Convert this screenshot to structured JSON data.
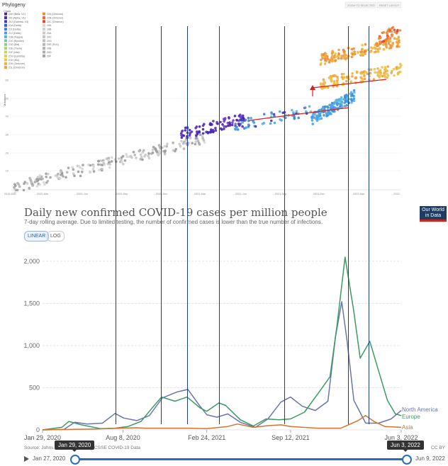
{
  "phylogeny": {
    "title": "Phylogeny",
    "color_by_label": "Clade",
    "buttons": [
      "ZOOM TO SELECTED",
      "RESET LAYOUT"
    ],
    "y_axis_label": "Mutations",
    "y_ticks": [
      "10",
      "20",
      "30",
      "40",
      "50",
      "60"
    ],
    "x_ticks": [
      "2019-Dec",
      "2020-Mar",
      "2020-Jun",
      "2020-Sep",
      "2020-Dec",
      "2021-Mar",
      "2021-Jun",
      "2021-Sep",
      "2021-Dec",
      "2022-Mar",
      "2022-"
    ],
    "legend_col1": [
      {
        "label": "20H (Beta, V2)",
        "color": "#5b1fa2"
      },
      {
        "label": "20I (Alpha, V1)",
        "color": "#4d2bb4"
      },
      {
        "label": "20J (Gamma, V3)",
        "color": "#4338c0"
      },
      {
        "label": "21A (Delta)",
        "color": "#3b57cc"
      },
      {
        "label": "21I (Delta)",
        "color": "#3d7fd6"
      },
      {
        "label": "21J (Delta)",
        "color": "#49a0e0"
      },
      {
        "label": "21B (Kappa)",
        "color": "#5cb6d8"
      },
      {
        "label": "21C (Epsilon)",
        "color": "#74c3b3"
      },
      {
        "label": "21D (Eta)",
        "color": "#8fcb8e"
      },
      {
        "label": "21E (Theta)",
        "color": "#add16d"
      },
      {
        "label": "21F (Iota)",
        "color": "#c8d35a"
      },
      {
        "label": "21G (Lambda)",
        "color": "#dcd14e"
      },
      {
        "label": "21H (Mu)",
        "color": "#e8c545"
      },
      {
        "label": "21K (Omicron)",
        "color": "#eeb341"
      },
      {
        "label": "21L (Omicron)",
        "color": "#f0a03e"
      }
    ],
    "legend_col2": [
      {
        "label": "22A (Omicron)",
        "color": "#f08a3a"
      },
      {
        "label": "22B (Omicron)",
        "color": "#ed6a33"
      },
      {
        "label": "22C (Omicron)",
        "color": "#e6442c"
      },
      {
        "label": "19A",
        "color": "#d4d4d4"
      },
      {
        "label": "19B",
        "color": "#cfcfcf"
      },
      {
        "label": "20A",
        "color": "#cacaca"
      },
      {
        "label": "20C",
        "color": "#c4c4c4"
      },
      {
        "label": "20G",
        "color": "#bebebe"
      },
      {
        "label": "20E (EU1)",
        "color": "#b8b8b8"
      },
      {
        "label": "20B",
        "color": "#b2b2b2"
      },
      {
        "label": "20D",
        "color": "#acacac"
      },
      {
        "label": "20F",
        "color": "#a6a6a6"
      }
    ]
  },
  "owid": {
    "title": "Daily new confirmed COVID-19 cases per million people",
    "subtitle": "7-day rolling average. Due to limited testing, the number of confirmed cases is lower than the true number of infections.",
    "logo": "Our World in Data",
    "toggle_linear": "LINEAR",
    "toggle_log": "LOG",
    "source": "Source: Johns Hopkins University CSSE COVID-19 Data",
    "license": "CC BY",
    "timeline_start": "Jan 27, 2020",
    "timeline_end": "Jun 9, 2022",
    "tip_left": "Jan 29, 2020",
    "tip_right": "Jun 3, 2022"
  },
  "chart_data": {
    "type": "line",
    "title": "Daily new confirmed COVID-19 cases per million people",
    "x_ticks": [
      "Jan 29, 2020",
      "Aug 8, 2020",
      "Feb 24, 2021",
      "Sep 12, 2021",
      "Jun 3, 2022"
    ],
    "y_ticks": [
      0,
      500,
      1000,
      1500,
      2000
    ],
    "ylim": [
      0,
      2100
    ],
    "grid": true,
    "series": [
      {
        "name": "North America",
        "color": "#6a75ad",
        "points": [
          [
            "2020-01-29",
            0
          ],
          [
            "2020-03-20",
            5
          ],
          [
            "2020-04-15",
            90
          ],
          [
            "2020-05-15",
            70
          ],
          [
            "2020-06-20",
            80
          ],
          [
            "2020-07-20",
            195
          ],
          [
            "2020-08-10",
            140
          ],
          [
            "2020-09-10",
            110
          ],
          [
            "2020-10-10",
            170
          ],
          [
            "2020-11-10",
            380
          ],
          [
            "2020-12-15",
            450
          ],
          [
            "2021-01-10",
            480
          ],
          [
            "2021-02-05",
            300
          ],
          [
            "2021-02-24",
            180
          ],
          [
            "2021-03-20",
            150
          ],
          [
            "2021-04-15",
            190
          ],
          [
            "2021-05-15",
            90
          ],
          [
            "2021-06-20",
            30
          ],
          [
            "2021-07-20",
            130
          ],
          [
            "2021-08-20",
            330
          ],
          [
            "2021-09-12",
            390
          ],
          [
            "2021-10-10",
            280
          ],
          [
            "2021-11-10",
            230
          ],
          [
            "2021-12-10",
            340
          ],
          [
            "2021-12-28",
            1100
          ],
          [
            "2022-01-12",
            1520
          ],
          [
            "2022-01-25",
            1050
          ],
          [
            "2022-02-10",
            350
          ],
          [
            "2022-03-10",
            80
          ],
          [
            "2022-04-10",
            80
          ],
          [
            "2022-05-10",
            130
          ],
          [
            "2022-06-03",
            230
          ]
        ]
      },
      {
        "name": "Europe",
        "color": "#3a9a61",
        "points": [
          [
            "2020-01-29",
            0
          ],
          [
            "2020-03-15",
            30
          ],
          [
            "2020-04-01",
            100
          ],
          [
            "2020-05-01",
            60
          ],
          [
            "2020-06-15",
            15
          ],
          [
            "2020-07-20",
            20
          ],
          [
            "2020-08-20",
            40
          ],
          [
            "2020-09-20",
            100
          ],
          [
            "2020-10-15",
            250
          ],
          [
            "2020-11-08",
            390
          ],
          [
            "2020-12-10",
            340
          ],
          [
            "2021-01-08",
            390
          ],
          [
            "2021-02-08",
            260
          ],
          [
            "2021-02-24",
            220
          ],
          [
            "2021-03-25",
            320
          ],
          [
            "2021-04-10",
            290
          ],
          [
            "2021-05-15",
            120
          ],
          [
            "2021-06-15",
            45
          ],
          [
            "2021-07-15",
            130
          ],
          [
            "2021-08-15",
            120
          ],
          [
            "2021-09-12",
            130
          ],
          [
            "2021-10-15",
            210
          ],
          [
            "2021-11-25",
            490
          ],
          [
            "2021-12-15",
            630
          ],
          [
            "2022-01-01",
            1250
          ],
          [
            "2022-01-20",
            2050
          ],
          [
            "2022-02-10",
            1400
          ],
          [
            "2022-02-25",
            850
          ],
          [
            "2022-03-20",
            1050
          ],
          [
            "2022-04-10",
            700
          ],
          [
            "2022-05-01",
            350
          ],
          [
            "2022-05-20",
            190
          ],
          [
            "2022-06-03",
            170
          ]
        ]
      },
      {
        "name": "Asia",
        "color": "#d2742f",
        "points": [
          [
            "2020-01-29",
            0
          ],
          [
            "2020-06-01",
            10
          ],
          [
            "2020-09-10",
            25
          ],
          [
            "2020-10-01",
            20
          ],
          [
            "2021-01-10",
            20
          ],
          [
            "2021-02-24",
            15
          ],
          [
            "2021-04-15",
            40
          ],
          [
            "2021-05-08",
            70
          ],
          [
            "2021-06-15",
            30
          ],
          [
            "2021-07-20",
            50
          ],
          [
            "2021-08-20",
            60
          ],
          [
            "2021-09-12",
            40
          ],
          [
            "2021-11-15",
            20
          ],
          [
            "2022-01-10",
            20
          ],
          [
            "2022-02-20",
            110
          ],
          [
            "2022-03-10",
            170
          ],
          [
            "2022-03-30",
            100
          ],
          [
            "2022-04-25",
            40
          ],
          [
            "2022-06-03",
            30
          ]
        ]
      }
    ]
  }
}
